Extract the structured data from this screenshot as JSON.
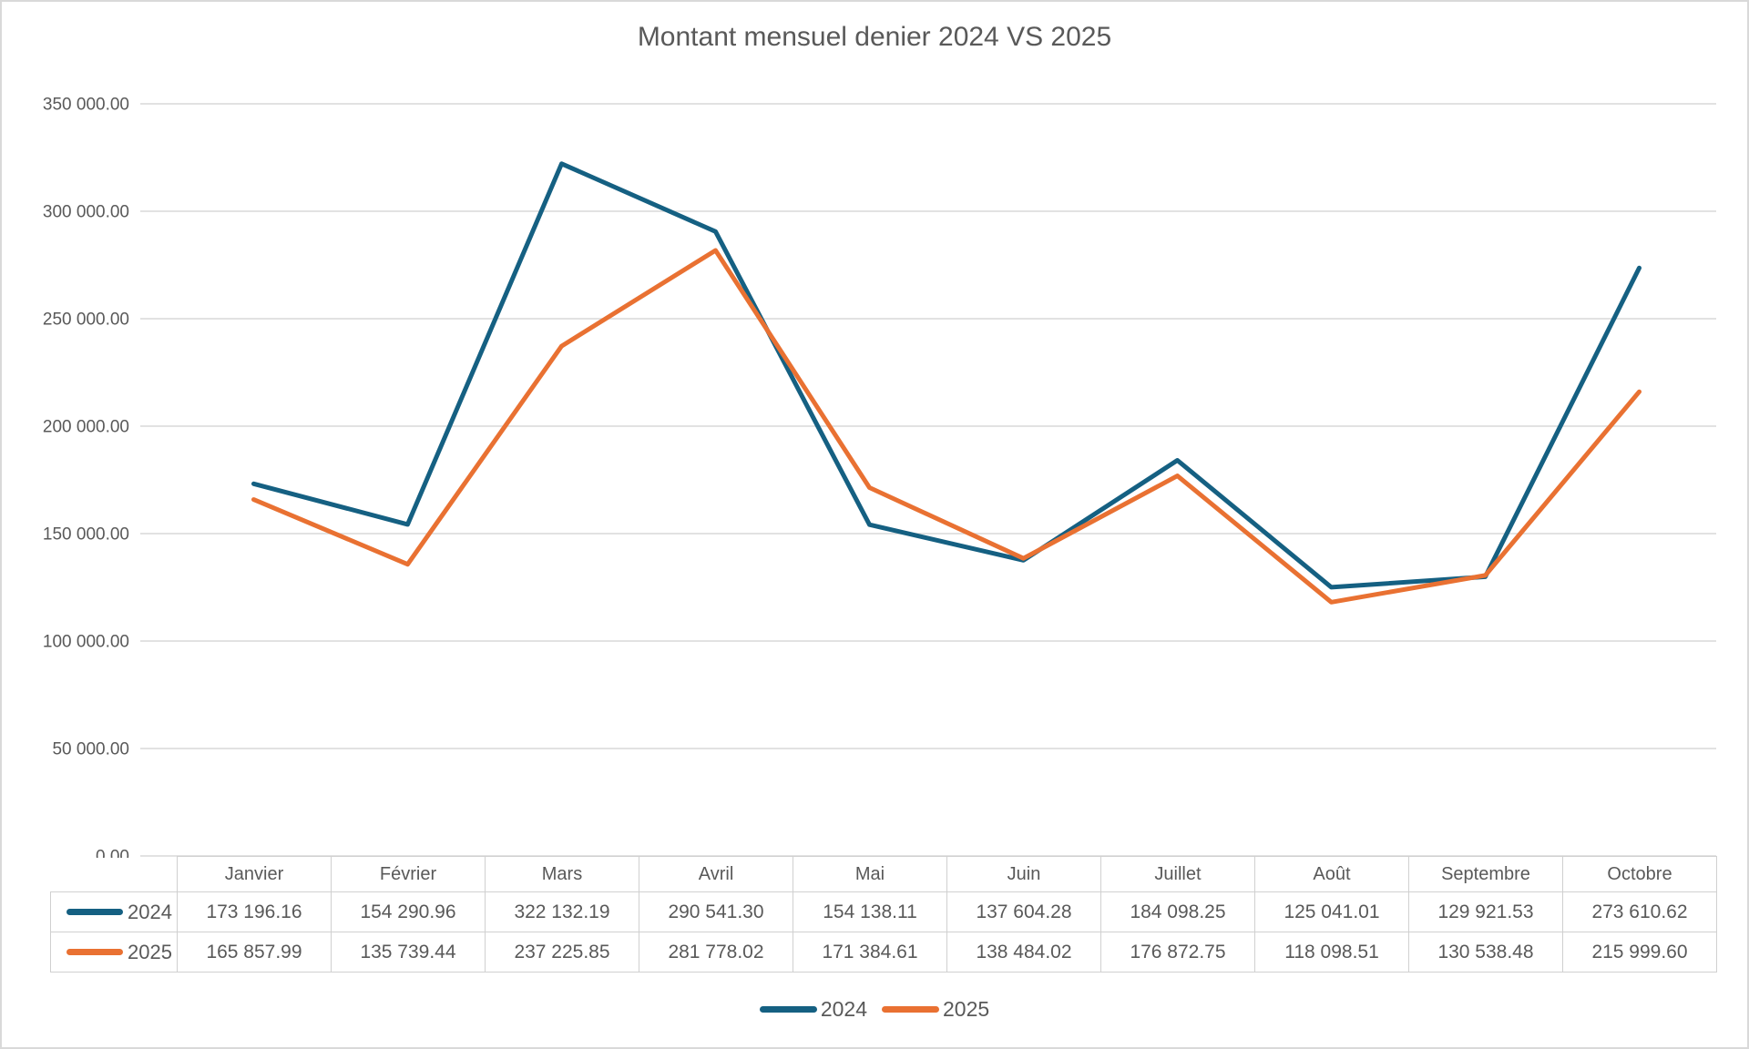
{
  "title": "Montant mensuel denier 2024 VS 2025",
  "chart_data": {
    "type": "line",
    "title": "Montant mensuel denier 2024 VS 2025",
    "categories": [
      "Janvier",
      "Février",
      "Mars",
      "Avril",
      "Mai",
      "Juin",
      "Juillet",
      "Août",
      "Septembre",
      "Octobre"
    ],
    "series": [
      {
        "name": "2024",
        "color": "#156082",
        "values": [
          173196.16,
          154290.96,
          322132.19,
          290541.3,
          154138.11,
          137604.28,
          184098.25,
          125041.01,
          129921.53,
          273610.62
        ]
      },
      {
        "name": "2025",
        "color": "#E97132",
        "values": [
          165857.99,
          135739.44,
          237225.85,
          281778.02,
          171384.61,
          138484.02,
          176872.75,
          118098.51,
          130538.48,
          215999.6
        ]
      }
    ],
    "ylim": [
      0,
      350000
    ],
    "ytick_step": 50000,
    "ytick_labels": [
      "0.00",
      "50 000.00",
      "100 000.00",
      "150 000.00",
      "200 000.00",
      "250 000.00",
      "300 000.00",
      "350 000.00"
    ],
    "grid": true,
    "legend_position": "bottom",
    "legend_entries": [
      "2024",
      "2025"
    ],
    "data_table_shown": true
  },
  "colors": {
    "grid": "#d9d9d9",
    "axis_text": "#595959",
    "table_border": "#d0d0d0",
    "text": "#595959",
    "background": "#ffffff",
    "frame_border": "#d9d9d9"
  }
}
